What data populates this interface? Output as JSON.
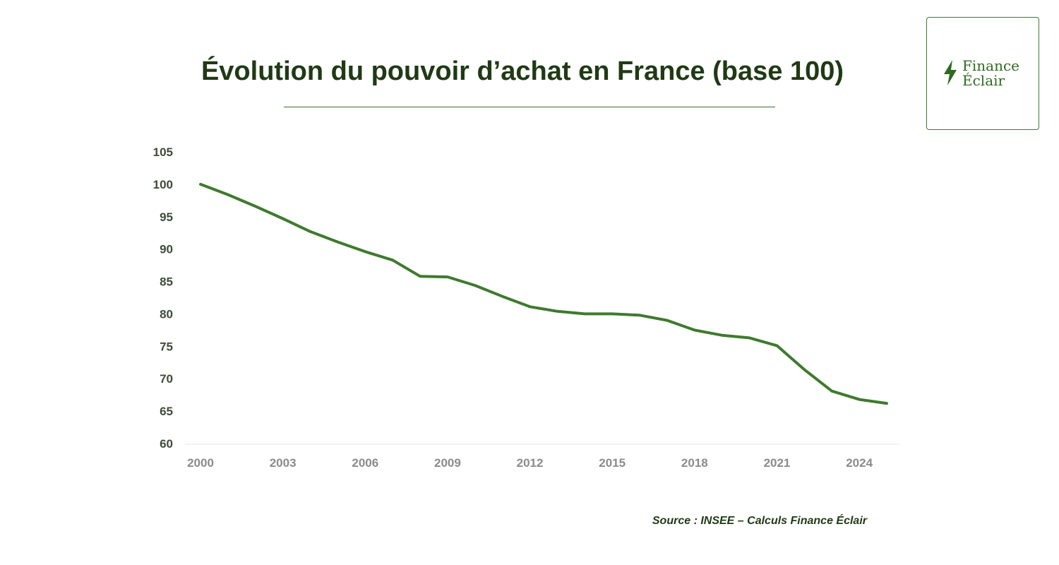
{
  "title": "Évolution du pouvoir d’achat en France (base 100)",
  "logo": {
    "line1": "Finance",
    "line2": "Éclair",
    "icon": "lightning-bolt-icon"
  },
  "source": "Source : INSEE – Calculs Finance Éclair",
  "colors": {
    "line": "#3f7a2e",
    "title": "#1f3a14",
    "logo": "#2f6a21"
  },
  "chart_data": {
    "type": "line",
    "title": "Évolution du pouvoir d’achat en France (base 100)",
    "x": [
      2000,
      2001,
      2002,
      2003,
      2004,
      2005,
      2006,
      2007,
      2008,
      2009,
      2010,
      2011,
      2012,
      2013,
      2014,
      2015,
      2016,
      2017,
      2018,
      2019,
      2020,
      2021,
      2022,
      2023,
      2024,
      2025
    ],
    "series": [
      {
        "values": [
          100.0,
          98.4,
          96.6,
          94.7,
          92.7,
          91.1,
          89.6,
          88.3,
          85.8,
          85.7,
          84.4,
          82.7,
          81.1,
          80.4,
          80.0,
          80.0,
          79.8,
          79.0,
          77.5,
          76.7,
          76.3,
          75.1,
          71.4,
          68.1,
          66.8,
          66.2
        ]
      }
    ],
    "yticks": [
      60,
      65,
      70,
      75,
      80,
      85,
      90,
      95,
      100,
      105
    ],
    "xticks": [
      2000,
      2003,
      2006,
      2009,
      2012,
      2015,
      2018,
      2021,
      2024
    ],
    "ylim": [
      60,
      105
    ],
    "xlim": [
      2000,
      2025
    ],
    "xlabel": "",
    "ylabel": "",
    "grid": false,
    "legend": "none"
  }
}
